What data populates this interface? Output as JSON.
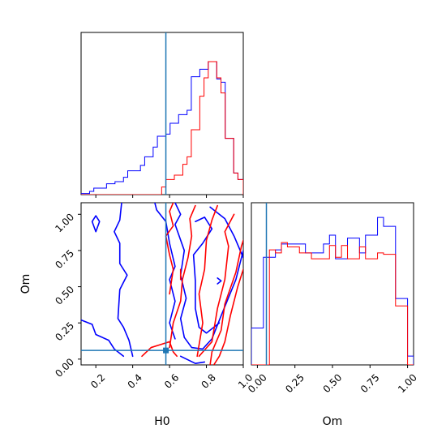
{
  "chart_data": {
    "type": "corner",
    "parameters": [
      "H0",
      "Om"
    ],
    "truths": {
      "H0": 0.58,
      "Om": 0.06
    },
    "colors": {
      "blue": "#0000ff",
      "red": "#ff0000",
      "truth": "#1f77b4"
    },
    "panels": [
      {
        "id": "hist_H0",
        "type": "histogram",
        "x_param": "H0",
        "xlim": [
          0.12,
          1.0
        ],
        "ylim": [
          0,
          150
        ],
        "bin_edges": [
          0.12,
          0.143,
          0.166,
          0.189,
          0.212,
          0.235,
          0.258,
          0.281,
          0.304,
          0.327,
          0.35,
          0.373,
          0.396,
          0.419,
          0.442,
          0.465,
          0.488,
          0.511,
          0.534,
          0.557,
          0.58,
          0.603,
          0.626,
          0.649,
          0.672,
          0.695,
          0.718,
          0.741,
          0.764,
          0.787,
          0.81,
          0.833,
          0.856,
          0.879,
          0.902,
          0.925,
          0.948,
          0.971,
          1.0
        ],
        "series": [
          {
            "name": "",
            "color": "#0000ff",
            "counts": [
              1,
              1,
              3,
              6,
              6,
              6,
              10,
              10,
              12,
              12,
              16,
              22,
              22,
              22,
              27,
              35,
              35,
              44,
              54,
              54,
              56,
              66,
              66,
              74,
              74,
              78,
              109,
              109,
              116,
              116,
              123,
              123,
              107,
              104,
              52,
              52,
              20,
              14
            ]
          },
          {
            "name": "",
            "color": "#ff0000",
            "counts": [
              0,
              0,
              0,
              0,
              0,
              0,
              0,
              0,
              0,
              0,
              0,
              0,
              0,
              0,
              0,
              0,
              0,
              0,
              0,
              7,
              14,
              14,
              18,
              18,
              28,
              35,
              60,
              60,
              91,
              108,
              123,
              123,
              108,
              94,
              52,
              52,
              20,
              14
            ]
          }
        ]
      },
      {
        "id": "contour_H0_Om",
        "type": "contour2d",
        "x_param": "H0",
        "y_param": "Om",
        "xlim": [
          0.12,
          1.0
        ],
        "ylim": [
          -0.04,
          1.08
        ],
        "xticks": [
          "0.2",
          "0.4",
          "0.6",
          "0.8",
          "1.0"
        ],
        "yticks": [
          "0.00",
          "0.25",
          "0.50",
          "0.75",
          "1.00"
        ],
        "series": [
          {
            "name": "",
            "color": "#0000ff",
            "contours": [
              [
                [
                  0.12,
                  0.27
                ],
                [
                  0.18,
                  0.24
                ],
                [
                  0.2,
                  0.17
                ],
                [
                  0.27,
                  0.13
                ],
                [
                  0.3,
                  0.07
                ],
                [
                  0.35,
                  0.02
                ]
              ],
              [
                [
                  0.34,
                  1.08
                ],
                [
                  0.33,
                  0.96
                ],
                [
                  0.3,
                  0.88
                ],
                [
                  0.33,
                  0.8
                ],
                [
                  0.33,
                  0.66
                ],
                [
                  0.37,
                  0.58
                ],
                [
                  0.33,
                  0.48
                ],
                [
                  0.32,
                  0.28
                ],
                [
                  0.35,
                  0.22
                ],
                [
                  0.38,
                  0.13
                ],
                [
                  0.4,
                  0.02
                ]
              ],
              [
                [
                  0.52,
                  1.08
                ],
                [
                  0.53,
                  1.03
                ],
                [
                  0.58,
                  0.95
                ],
                [
                  0.6,
                  0.8
                ],
                [
                  0.63,
                  0.64
                ],
                [
                  0.6,
                  0.55
                ],
                [
                  0.63,
                  0.4
                ],
                [
                  0.6,
                  0.25
                ],
                [
                  0.63,
                  0.14
                ]
              ],
              [
                [
                  0.66,
                  0.02
                ],
                [
                  0.74,
                  -0.03
                ],
                [
                  0.79,
                  -0.02
                ]
              ],
              [
                [
                  0.63,
                  1.08
                ],
                [
                  0.66,
                  1.0
                ],
                [
                  0.63,
                  0.93
                ],
                [
                  0.68,
                  0.75
                ],
                [
                  0.66,
                  0.58
                ],
                [
                  0.69,
                  0.42
                ],
                [
                  0.66,
                  0.28
                ],
                [
                  0.68,
                  0.15
                ],
                [
                  0.72,
                  0.08
                ],
                [
                  0.78,
                  0.07
                ],
                [
                  0.83,
                  0.14
                ],
                [
                  0.88,
                  0.3
                ],
                [
                  0.96,
                  0.55
                ],
                [
                  1.0,
                  0.75
                ]
              ],
              [
                [
                  0.74,
                  0.95
                ],
                [
                  0.79,
                  0.98
                ],
                [
                  0.83,
                  0.9
                ],
                [
                  0.78,
                  0.8
                ],
                [
                  0.73,
                  0.72
                ],
                [
                  0.74,
                  0.54
                ],
                [
                  0.74,
                  0.35
                ],
                [
                  0.76,
                  0.22
                ],
                [
                  0.8,
                  0.18
                ],
                [
                  0.87,
                  0.25
                ]
              ],
              [
                [
                  0.82,
                  1.05
                ],
                [
                  0.9,
                  0.97
                ],
                [
                  0.95,
                  0.85
                ],
                [
                  1.0,
                  0.7
                ]
              ],
              [
                [
                  0.18,
                  0.95
                ],
                [
                  0.2,
                  0.88
                ],
                [
                  0.22,
                  0.95
                ],
                [
                  0.2,
                  0.99
                ],
                [
                  0.18,
                  0.95
                ]
              ],
              [
                [
                  0.86,
                  0.52
                ],
                [
                  0.88,
                  0.54
                ],
                [
                  0.86,
                  0.56
                ]
              ]
            ]
          },
          {
            "name": "",
            "color": "#ff0000",
            "contours": [
              [
                [
                  0.45,
                  0.02
                ],
                [
                  0.5,
                  0.08
                ],
                [
                  0.55,
                  0.1
                ],
                [
                  0.6,
                  0.12
                ],
                [
                  0.62,
                  0.05
                ],
                [
                  0.64,
                  0.02
                ]
              ],
              [
                [
                  0.6,
                  0.08
                ],
                [
                  0.62,
                  0.25
                ],
                [
                  0.66,
                  0.4
                ],
                [
                  0.67,
                  0.55
                ],
                [
                  0.7,
                  0.7
                ],
                [
                  0.72,
                  0.85
                ],
                [
                  0.71,
                  0.97
                ],
                [
                  0.74,
                  1.06
                ]
              ],
              [
                [
                  0.6,
                  0.45
                ],
                [
                  0.62,
                  0.62
                ],
                [
                  0.6,
                  0.72
                ],
                [
                  0.58,
                  0.85
                ],
                [
                  0.62,
                  0.92
                ],
                [
                  0.6,
                  1.02
                ],
                [
                  0.62,
                  1.08
                ]
              ],
              [
                [
                  0.75,
                  0.02
                ],
                [
                  0.78,
                  0.25
                ],
                [
                  0.76,
                  0.45
                ],
                [
                  0.79,
                  0.62
                ],
                [
                  0.8,
                  0.82
                ],
                [
                  0.83,
                  0.96
                ],
                [
                  0.86,
                  1.06
                ]
              ],
              [
                [
                  0.76,
                  0.02
                ],
                [
                  0.83,
                  0.12
                ],
                [
                  0.86,
                  0.35
                ],
                [
                  0.9,
                  0.55
                ],
                [
                  0.92,
                  0.78
                ],
                [
                  0.9,
                  0.88
                ],
                [
                  0.95,
                  1.0
                ]
              ],
              [
                [
                  0.82,
                  -0.04
                ],
                [
                  0.83,
                  0.05
                ],
                [
                  0.88,
                  0.2
                ],
                [
                  0.9,
                  0.38
                ],
                [
                  0.96,
                  0.6
                ],
                [
                  0.99,
                  0.78
                ],
                [
                  1.0,
                  0.82
                ]
              ],
              [
                [
                  0.84,
                  -0.04
                ],
                [
                  0.87,
                  0.02
                ],
                [
                  0.9,
                  0.12
                ],
                [
                  0.93,
                  0.3
                ],
                [
                  0.97,
                  0.5
                ],
                [
                  1.0,
                  0.62
                ]
              ],
              [
                [
                  0.66,
                  0.62
                ],
                [
                  0.66,
                  0.55
                ]
              ]
            ]
          }
        ]
      },
      {
        "id": "hist_Om",
        "type": "histogram",
        "x_param": "Om",
        "xlim": [
          -0.04,
          1.04
        ],
        "ylim": [
          0,
          110
        ],
        "xticks": [
          "0.00",
          "0.25",
          "0.50",
          "0.75",
          "1.00"
        ],
        "bin_edges": [
          -0.04,
          0.0,
          0.04,
          0.08,
          0.12,
          0.16,
          0.2,
          0.24,
          0.28,
          0.32,
          0.36,
          0.4,
          0.44,
          0.48,
          0.52,
          0.56,
          0.6,
          0.64,
          0.68,
          0.72,
          0.76,
          0.8,
          0.84,
          0.88,
          0.92,
          0.96,
          1.0,
          1.04
        ],
        "series": [
          {
            "name": "",
            "color": "#0000ff",
            "counts": [
              25,
              25,
              73,
              73,
              78,
              82,
              82,
              82,
              82,
              76,
              76,
              76,
              82,
              88,
              72,
              72,
              86,
              86,
              76,
              88,
              88,
              100,
              94,
              94,
              45,
              45,
              6
            ]
          },
          {
            "name": "",
            "color": "#ff0000",
            "counts": [
              0,
              0,
              0,
              78,
              76,
              83,
              80,
              80,
              76,
              76,
              72,
              72,
              72,
              81,
              73,
              81,
              72,
              72,
              80,
              72,
              72,
              76,
              75,
              75,
              40,
              40,
              0
            ]
          }
        ]
      }
    ]
  }
}
